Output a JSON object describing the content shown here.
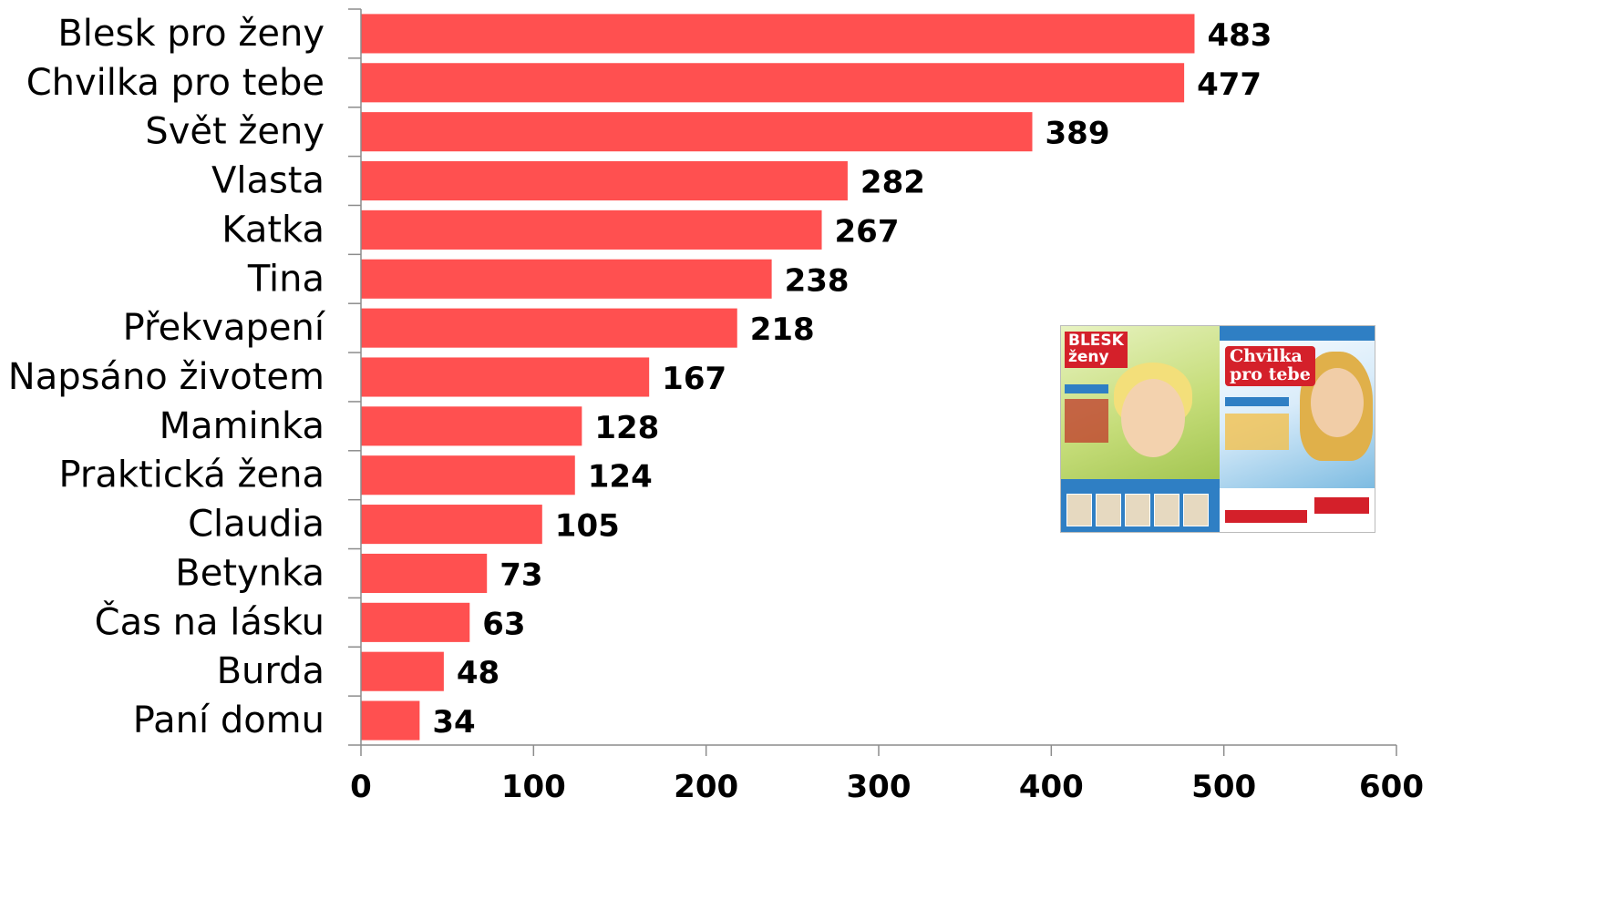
{
  "chart_data": {
    "type": "bar",
    "orientation": "horizontal",
    "categories": [
      "Blesk pro ženy",
      "Chvilka pro tebe",
      "Svět ženy",
      "Vlasta",
      "Katka",
      "Tina",
      "Překvapení",
      "Napsáno životem",
      "Maminka",
      "Praktická žena",
      "Claudia",
      "Betynka",
      "Čas na lásku",
      "Burda",
      "Paní domu"
    ],
    "values": [
      483,
      477,
      389,
      282,
      267,
      238,
      218,
      167,
      128,
      124,
      105,
      73,
      63,
      48,
      34
    ],
    "xlim": [
      0,
      600
    ],
    "xticks": [
      "0",
      "100",
      "200",
      "300",
      "400",
      "500",
      "600"
    ],
    "grid": false,
    "legend": "none",
    "bar_color": "#ff5050",
    "title": "",
    "xlabel": "",
    "ylabel": ""
  },
  "inset_image": {
    "description_icons": [
      "magazine-cover-blesk-pro-zeny",
      "magazine-cover-chvilka-pro-tebe"
    ]
  }
}
